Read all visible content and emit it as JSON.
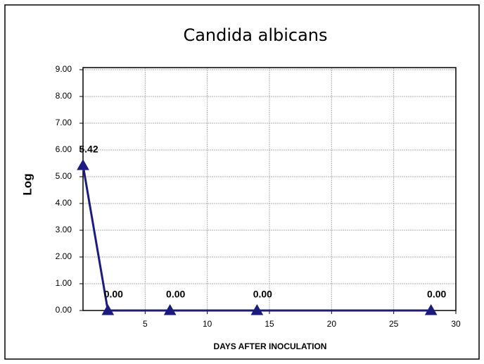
{
  "chart_data": {
    "type": "line",
    "title": "Candida albicans",
    "x_label": "DAYS AFTER INOCULATION",
    "y_label": "Log",
    "x": [
      0,
      2,
      7,
      14,
      28
    ],
    "values": [
      5.42,
      0,
      0,
      0,
      0
    ],
    "value_labels": [
      "5.42",
      "0.00",
      "0.00",
      "0.00",
      "0.00"
    ],
    "color": "#1a1a80",
    "xlim": [
      0,
      30
    ],
    "xticks": [
      5,
      10,
      15,
      20,
      25,
      30
    ],
    "ylim": [
      0,
      9
    ],
    "yticks": [
      {
        "value": 0,
        "label": "0.00"
      },
      {
        "value": 1,
        "label": "1.00"
      },
      {
        "value": 2,
        "label": "2.00"
      },
      {
        "value": 3,
        "label": "3.00"
      },
      {
        "value": 4,
        "label": "4.00"
      },
      {
        "value": 5,
        "label": "5.00"
      },
      {
        "value": 6,
        "label": "6.00"
      },
      {
        "value": 7,
        "label": "7.00"
      },
      {
        "value": 8,
        "label": "8.00"
      },
      {
        "value": 9,
        "label": "9.00"
      }
    ],
    "grid": true
  }
}
